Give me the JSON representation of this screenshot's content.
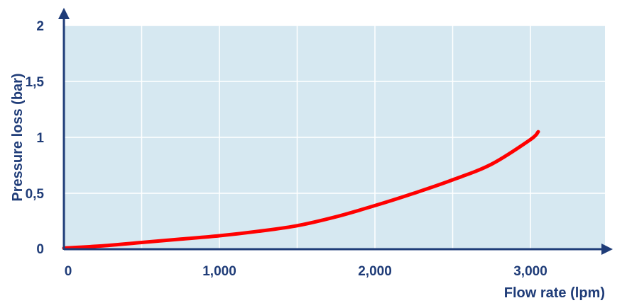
{
  "chart_data": {
    "type": "line",
    "title": "",
    "xlabel": "Flow rate (lpm)",
    "ylabel": "Pressure loss (bar)",
    "xlim": [
      0,
      3500
    ],
    "ylim": [
      0,
      2
    ],
    "x_ticks": [
      {
        "value": 0,
        "label": "0"
      },
      {
        "value": 1000,
        "label": "1,000"
      },
      {
        "value": 2000,
        "label": "2,000"
      },
      {
        "value": 3000,
        "label": "3,000"
      }
    ],
    "y_ticks": [
      {
        "value": 0,
        "label": "0"
      },
      {
        "value": 0.5,
        "label": "0,5"
      },
      {
        "value": 1,
        "label": "1"
      },
      {
        "value": 1.5,
        "label": "1,5"
      },
      {
        "value": 2,
        "label": "2"
      }
    ],
    "grid": true,
    "series": [
      {
        "color": "#ff0000",
        "x": [
          0,
          250,
          500,
          750,
          1000,
          1250,
          1500,
          1750,
          2000,
          2250,
          2500,
          2750,
          3000,
          3050
        ],
        "y": [
          0.01,
          0.03,
          0.06,
          0.09,
          0.12,
          0.16,
          0.21,
          0.29,
          0.39,
          0.5,
          0.62,
          0.76,
          0.98,
          1.05
        ]
      }
    ]
  },
  "colors": {
    "plot_background": "#d6e8f1",
    "gridline": "#ffffff",
    "axis": "#1f3c78",
    "text": "#1f3c78",
    "series": "#ff0000"
  }
}
